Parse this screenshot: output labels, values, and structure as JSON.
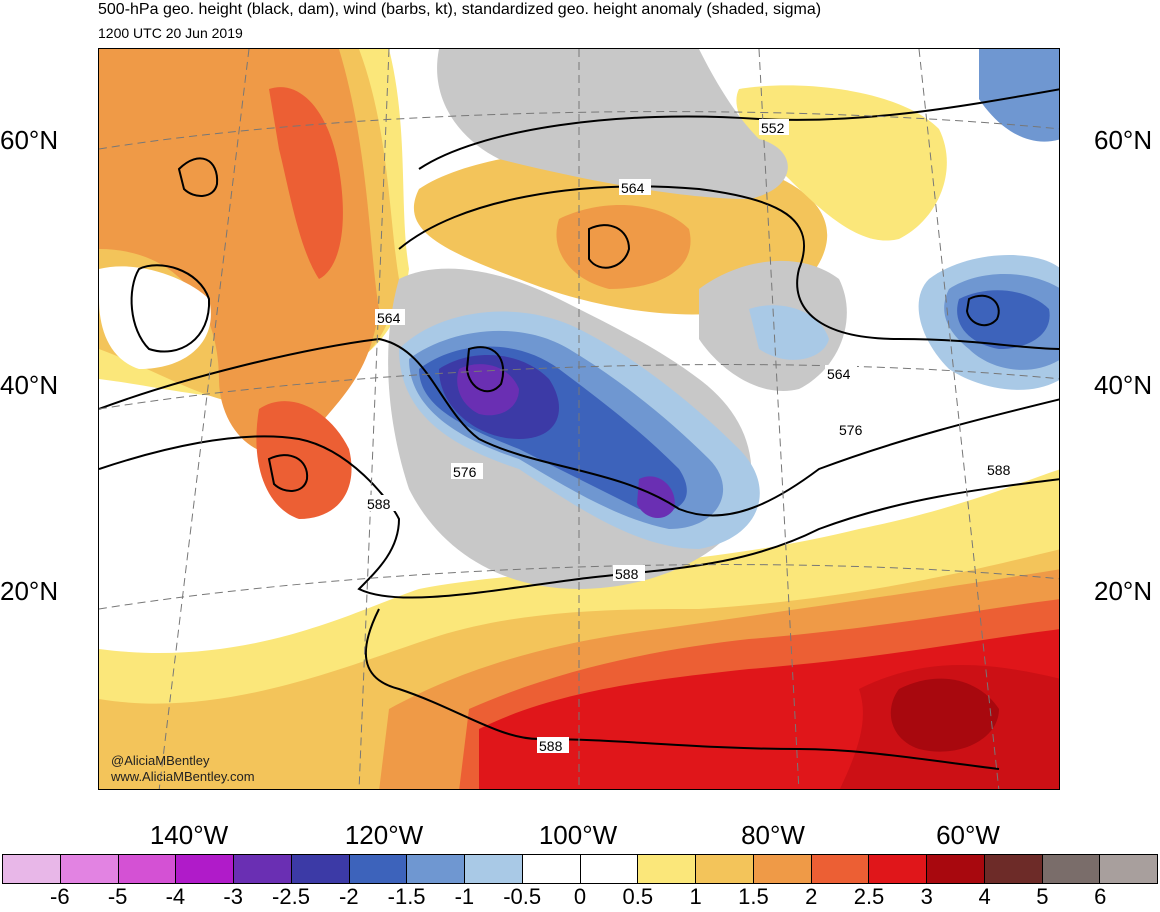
{
  "header": {
    "title": "500-hPa geo. height (black, dam), wind (barbs, kt), standardized geo. height anomaly (shaded, sigma)",
    "subtitle": "1200 UTC 20 Jun 2019"
  },
  "axes": {
    "lat_left": [
      "60°N",
      "40°N",
      "20°N"
    ],
    "lat_right": [
      "60°N",
      "40°N",
      "20°N"
    ],
    "lon_bottom": [
      "140°W",
      "120°W",
      "100°W",
      "80°W",
      "60°W"
    ]
  },
  "contour_labels": [
    "552",
    "564",
    "564",
    "564",
    "576",
    "576",
    "588",
    "588",
    "588",
    "588"
  ],
  "credit": {
    "handle": "@AliciaMBentley",
    "url": "www.AliciaMBentley.com"
  },
  "colorbar": {
    "labels": [
      "-6",
      "-5",
      "-4",
      "-3",
      "-2.5",
      "-2",
      "-1.5",
      "-1",
      "-0.5",
      "0",
      "0.5",
      "1",
      "1.5",
      "2",
      "2.5",
      "3",
      "4",
      "5",
      "6"
    ],
    "colors": [
      "#e8b7e8",
      "#e283e2",
      "#d451d4",
      "#b01bc9",
      "#6a2fb3",
      "#3c3aa6",
      "#3d63bb",
      "#6f97d1",
      "#a9c9e6",
      "#ffffff",
      "#ffffff",
      "#fbe77a",
      "#f3c45a",
      "#ef9a47",
      "#ec5f34",
      "#e0161a",
      "#a8080e",
      "#6d2b28",
      "#7a6d6a",
      "#a89f9d"
    ]
  },
  "colors": {
    "land_gray": "#c8c8c8",
    "coastline": "#555555",
    "contour": "#000000"
  }
}
